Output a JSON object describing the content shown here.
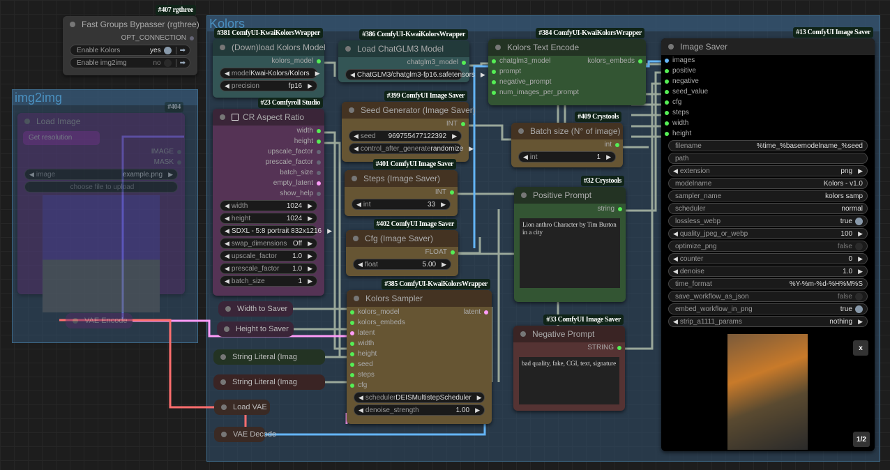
{
  "colors": {
    "wire": "#9aa89a",
    "image_wire": "#64b5f6",
    "latent_wire": "#ff9cf9",
    "vae_wire": "#ff6e6e",
    "socket": "#5e5"
  },
  "groups": [
    {
      "title": "Kolors"
    },
    {
      "title": "img2img"
    }
  ],
  "nodes": [
    {
      "id": "407",
      "badge": "#407 rgthree",
      "title": "Fast Groups Bypasser (rgthree)",
      "theme": {
        "title": "#353535",
        "body": "#353535"
      },
      "outputs": [
        "OPT_CONNECTION"
      ],
      "inputs": [],
      "widgets": [
        {
          "label": "Enable Kolors",
          "value": "yes",
          "type": "toggle",
          "on": true
        },
        {
          "label": "Enable img2img",
          "value": "no",
          "type": "toggle",
          "on": false
        }
      ]
    },
    {
      "id": "404",
      "badge": "#404",
      "title": "Load Image",
      "faded": true,
      "theme": {
        "title": "#5a2a6a",
        "body": "#5a2a6a"
      },
      "outputs": [
        "IMAGE",
        "MASK"
      ],
      "inputs": [],
      "widgets": [
        {
          "label": "image",
          "value": "example.png",
          "type": "combo"
        },
        {
          "label": "",
          "value": "choose file to upload",
          "type": "text"
        }
      ],
      "subnode": "Get resolution"
    },
    {
      "id": "381",
      "badge": "#381 ComfyUI-KwaiKolorsWrapper",
      "title": "(Down)load Kolors Model",
      "theme": {
        "title": "#223a3a",
        "body": "#335555"
      },
      "outputs": [
        "kolors_model"
      ],
      "inputs": [],
      "widgets": [
        {
          "label": "model",
          "value": "Kwai-Kolors/Kolors",
          "type": "combo"
        },
        {
          "label": "precision",
          "value": "fp16",
          "type": "combo"
        }
      ]
    },
    {
      "id": "23",
      "badge": "#23 Comfyroll Studio",
      "title": "CR Aspect Ratio",
      "theme": {
        "title": "#3a2538",
        "body": "#553355"
      },
      "outputs": [
        "width",
        "height",
        "upscale_factor",
        "prescale_factor",
        "batch_size",
        "empty_latent",
        "show_help"
      ],
      "inputs": [],
      "widgets": [
        {
          "label": "width",
          "value": "1024",
          "type": "combo"
        },
        {
          "label": "height",
          "value": "1024",
          "type": "combo"
        },
        {
          "label": "",
          "value": "SDXL - 5:8 portrait 832x1216",
          "type": "combo"
        },
        {
          "label": "swap_dimensions",
          "value": "Off",
          "type": "combo"
        },
        {
          "label": "upscale_factor",
          "value": "1.0",
          "type": "combo"
        },
        {
          "label": "prescale_factor",
          "value": "1.0",
          "type": "combo"
        },
        {
          "label": "batch_size",
          "value": "1",
          "type": "combo"
        }
      ]
    },
    {
      "id": "386",
      "badge": "#386 ComfyUI-KwaiKolorsWrapper",
      "title": "Load ChatGLM3 Model",
      "theme": {
        "title": "#223a3a",
        "body": "#335555"
      },
      "outputs": [
        "chatglm3_model"
      ],
      "inputs": [],
      "widgets": [
        {
          "label": "",
          "value": "ChatGLM3/chatglm3-fp16.safetensors",
          "type": "combo"
        }
      ]
    },
    {
      "id": "384",
      "badge": "#384 ComfyUI-KwaiKolorsWrapper",
      "title": "Kolors Text Encode",
      "theme": {
        "title": "#233323",
        "body": "#335533"
      },
      "outputs": [
        "kolors_embeds"
      ],
      "inputs": [
        "chatglm3_model",
        "prompt",
        "negative_prompt",
        "num_images_per_prompt"
      ],
      "widgets": []
    },
    {
      "id": "399",
      "badge": "#399 ComfyUI Image Saver",
      "title": "Seed Generator (Image Saver)",
      "theme": {
        "title": "#443322",
        "body": "#665533"
      },
      "outputs": [
        "INT"
      ],
      "inputs": [],
      "widgets": [
        {
          "label": "seed",
          "value": "969755477122392",
          "type": "combo"
        },
        {
          "label": "control_after_generate",
          "value": "randomize",
          "type": "combo"
        }
      ]
    },
    {
      "id": "409",
      "badge": "#409 Crystools",
      "title": "Batch size (N° of image)",
      "theme": {
        "title": "#443322",
        "body": "#665533"
      },
      "outputs": [
        "int"
      ],
      "inputs": [],
      "widgets": [
        {
          "label": "int",
          "value": "1",
          "type": "combo"
        }
      ]
    },
    {
      "id": "401",
      "badge": "#401 ComfyUI Image Saver",
      "title": "Steps (Image Saver)",
      "theme": {
        "title": "#443322",
        "body": "#665533"
      },
      "outputs": [
        "INT"
      ],
      "inputs": [],
      "widgets": [
        {
          "label": "int",
          "value": "33",
          "type": "combo"
        }
      ]
    },
    {
      "id": "402",
      "badge": "#402 ComfyUI Image Saver",
      "title": "Cfg (Image Saver)",
      "theme": {
        "title": "#443322",
        "body": "#665533"
      },
      "outputs": [
        "FLOAT"
      ],
      "inputs": [],
      "widgets": [
        {
          "label": "float",
          "value": "5.00",
          "type": "combo"
        }
      ]
    },
    {
      "id": "32",
      "badge": "#32 Crystools",
      "title": "Positive Prompt",
      "theme": {
        "title": "#233323",
        "body": "#335533"
      },
      "outputs": [
        "string"
      ],
      "inputs": [],
      "widgets": [],
      "text": "Lion anthro Character by Tim Burton in a city"
    },
    {
      "id": "385",
      "badge": "#385 ComfyUI-KwaiKolorsWrapper",
      "title": "Kolors Sampler",
      "theme": {
        "title": "#443322",
        "body": "#665533"
      },
      "outputs": [
        "latent"
      ],
      "inputs": [
        "kolors_model",
        "kolors_embeds",
        "latent",
        "width",
        "height",
        "seed",
        "steps",
        "cfg"
      ],
      "widgets": [
        {
          "label": "scheduler",
          "value": "DEISMultistepScheduler",
          "type": "combo"
        },
        {
          "label": "denoise_strength",
          "value": "1.00",
          "type": "combo"
        }
      ]
    },
    {
      "id": "33",
      "badge": "#33 ComfyUI Image Saver",
      "title": "Negative Prompt",
      "theme": {
        "title": "#3a2424",
        "body": "#553333"
      },
      "outputs": [
        "STRING"
      ],
      "inputs": [],
      "widgets": [],
      "text": "bad quality, fake, CGI, text, signature"
    },
    {
      "id": "13",
      "badge": "#13 ComfyUI Image Saver",
      "title": "Image Saver",
      "theme": {
        "title": "#222222",
        "body": "#000000"
      },
      "outputs": [],
      "inputs": [
        "images",
        "positive",
        "negative",
        "seed_value",
        "cfg",
        "steps",
        "width",
        "height"
      ],
      "widgets": [
        {
          "label": "filename",
          "value": "%time_%basemodelname_%seed",
          "type": "text"
        },
        {
          "label": "path",
          "value": "",
          "type": "text"
        },
        {
          "label": "extension",
          "value": "png",
          "type": "combo"
        },
        {
          "label": "modelname",
          "value": "Kolors - v1.0",
          "type": "text"
        },
        {
          "label": "sampler_name",
          "value": "kolors samp",
          "type": "text"
        },
        {
          "label": "scheduler",
          "value": "normal",
          "type": "text"
        },
        {
          "label": "lossless_webp",
          "value": "true",
          "type": "toggle",
          "on": true
        },
        {
          "label": "quality_jpeg_or_webp",
          "value": "100",
          "type": "combo"
        },
        {
          "label": "optimize_png",
          "value": "false",
          "type": "toggle",
          "on": false
        },
        {
          "label": "counter",
          "value": "0",
          "type": "combo"
        },
        {
          "label": "denoise",
          "value": "1.0",
          "type": "combo"
        },
        {
          "label": "time_format",
          "value": "%Y-%m-%d-%H%M%S",
          "type": "text"
        },
        {
          "label": "save_workflow_as_json",
          "value": "false",
          "type": "toggle",
          "on": false
        },
        {
          "label": "embed_workflow_in_png",
          "value": "true",
          "type": "toggle",
          "on": true
        },
        {
          "label": "strip_a1111_params",
          "value": "nothing",
          "type": "combo"
        }
      ],
      "preview": {
        "close_label": "x",
        "page_label": "1/2"
      }
    }
  ],
  "collapsed": [
    {
      "title": "Width to Saver",
      "color": "#3a2538"
    },
    {
      "title": "Height to Saver",
      "color": "#3a2538"
    },
    {
      "title": "String Literal (Imag",
      "color": "#233323"
    },
    {
      "title": "String Literal (Imag",
      "color": "#3a2424"
    },
    {
      "title": "Load VAE",
      "color": "#3a2a24"
    },
    {
      "title": "VAE Decode",
      "color": "#3a2a24"
    },
    {
      "title": "VAE Encode",
      "color": "#5a2a6a",
      "faded": true
    }
  ]
}
